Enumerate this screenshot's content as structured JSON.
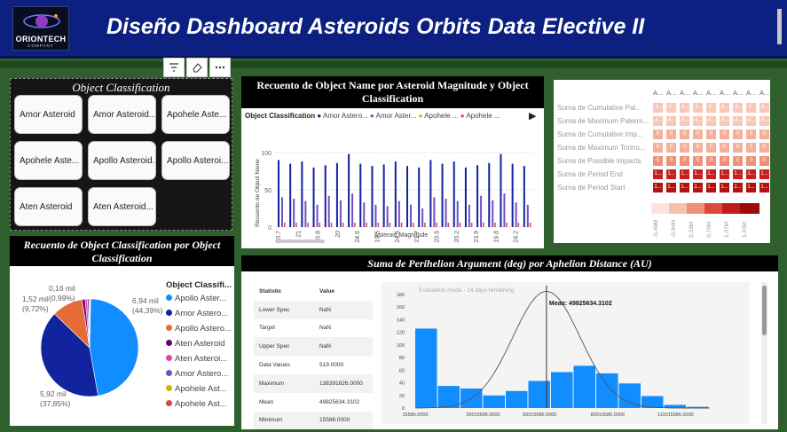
{
  "header": {
    "logo_text": "ORIONTECH",
    "logo_sub": "COMPANY",
    "title": "Diseño Dashboard Asteroids Orbits Data Elective II"
  },
  "toolbar": {
    "icons": [
      "filter-icon",
      "eraser-icon",
      "more-options-icon"
    ]
  },
  "object_classification": {
    "title": "Object Classification",
    "tiles": [
      "Amor Asteroid",
      "Amor Asteroid...",
      "Apohele Aste...",
      "Apohele Aste...",
      "Apollo Asteroid...",
      "Apollo Asteroi...",
      "Aten Asteroid",
      "Aten Asteroid..."
    ]
  },
  "pie": {
    "title": "Recuento de Object Classification por Object Classification",
    "labels": [
      {
        "l1": "6,94 mil",
        "l2": "(44,39%)"
      },
      {
        "l1": "5,92 mil",
        "l2": "(37,85%)"
      },
      {
        "l1": "1,52 mil",
        "l2": "(9,72%)"
      },
      {
        "l1": "0,16 mil",
        "l2": "(0,99%)"
      }
    ],
    "legend_title": "Object Classifi...",
    "legend": [
      "Apollo Aster...",
      "Amor Astero...",
      "Apollo Astero...",
      "Aten Asteroid",
      "Aten Asteroi...",
      "Amor Astero...",
      "Apohele Ast...",
      "Apohele Ast..."
    ],
    "colors": [
      "#118dff",
      "#12239e",
      "#e66c37",
      "#6b007b",
      "#e044a7",
      "#744ec2",
      "#d9b300",
      "#d64550"
    ]
  },
  "bar": {
    "title": "Recuento de Object Name por Asteroid Magnitude y Object Classification",
    "legend_title": "Object Classification",
    "legend": [
      "Amor Astero...",
      "Amor Aster...",
      "Apohele ...",
      "Apohele ..."
    ],
    "legend_colors": [
      "#12239e",
      "#744ec2",
      "#d9b300",
      "#d64550"
    ],
    "ylabel": "Recuento de Object Name",
    "xlabel": "Asteroid Magnitude",
    "yticks": [
      "100",
      "50",
      "0"
    ]
  },
  "chart_data": {
    "type": "bar",
    "categories": [
      "20.7",
      "21",
      "20.8",
      "20",
      "24.6",
      "19.5",
      "24.5",
      "21.7",
      "20.5",
      "20.2",
      "23.9",
      "19.8",
      "24.2"
    ],
    "series": [
      {
        "name": "Amor Astero...",
        "values": [
          90,
          85,
          88,
          80,
          83,
          86,
          98,
          85,
          82,
          84,
          88,
          82,
          80
        ]
      },
      {
        "name": "Amor Aster...",
        "values": [
          40,
          38,
          35,
          30,
          42,
          36,
          45,
          33,
          30,
          28,
          35,
          30,
          25
        ]
      }
    ],
    "ylim": [
      0,
      100
    ]
  },
  "heat": {
    "rows": [
      "Suma de Cumulative Pal...",
      "Suma de Maximum Palerm...",
      "Suma de Cumulative Imp...",
      "Suma de Maximum Torino...",
      "Suma de Possible Impacts",
      "Suma de Period End",
      "Suma de Period Start"
    ],
    "cols": [
      "A...",
      "A...",
      "A...",
      "A...",
      "A...",
      "A...",
      "A..."
    ],
    "legend": [
      "-0,40M",
      "-0,04M",
      "0,33M",
      "0,70M",
      "1,07M",
      "1,43M"
    ],
    "cell_row_text": [
      "-4...",
      "-4...",
      "0",
      "0",
      "0",
      "1...",
      "1..."
    ],
    "row_colors": [
      "#f8c7b5",
      "#f8c7b5",
      "#f4b09a",
      "#f4b09a",
      "#f08f7a",
      "#c81e1e",
      "#b21212"
    ]
  },
  "perihelion": {
    "title": "Suma de Perihelion Argument (deg) por Aphelion Distance (AU)",
    "stats_header": [
      "Statistic",
      "Value"
    ],
    "stats": [
      [
        "Lower Spec",
        "NaN"
      ],
      [
        "Target",
        "NaN"
      ],
      [
        "Upper Spec",
        "NaN"
      ],
      [
        "Data Values",
        "519.0000"
      ],
      [
        "Maximum",
        "138391626.0000"
      ],
      [
        "Mean",
        "49825634.3102"
      ],
      [
        "Minimum",
        "15586.0000"
      ]
    ],
    "eval_text": "Evaluation mode - 14 days remaining",
    "mean_label": "Mean: 49825634.3102",
    "hist_yticks": [
      "180",
      "160",
      "140",
      "120",
      "100",
      "80",
      "60",
      "40",
      "20",
      "0"
    ],
    "hist_xticks": [
      "15586.0000",
      "20015586.0000",
      "50015586.0000",
      "80015586.0000",
      "110015586.0000"
    ],
    "hist_values": [
      126,
      35,
      31,
      20,
      27,
      43,
      57,
      67,
      55,
      39,
      19,
      5,
      2
    ]
  }
}
